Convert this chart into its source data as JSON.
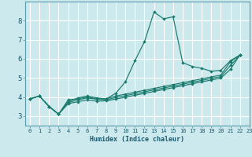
{
  "xlabel": "Humidex (Indice chaleur)",
  "background_color": "#cce9ed",
  "grid_color": "#ffffff",
  "line_color": "#1a7a6e",
  "xlim": [
    -0.5,
    23.0
  ],
  "ylim": [
    2.5,
    9.0
  ],
  "xticks": [
    0,
    1,
    2,
    3,
    4,
    5,
    6,
    7,
    8,
    9,
    10,
    11,
    12,
    13,
    14,
    15,
    16,
    17,
    18,
    19,
    20,
    21,
    22,
    23
  ],
  "yticks": [
    3,
    4,
    5,
    6,
    7,
    8
  ],
  "series": [
    [
      3.9,
      4.05,
      3.5,
      3.1,
      3.85,
      3.9,
      4.0,
      3.9,
      3.9,
      4.2,
      4.8,
      5.9,
      6.9,
      8.45,
      8.1,
      8.2,
      5.8,
      5.6,
      5.5,
      5.35,
      5.4,
      5.9,
      6.2
    ],
    [
      3.9,
      4.05,
      3.5,
      3.1,
      3.75,
      3.95,
      4.05,
      3.95,
      3.9,
      4.05,
      4.15,
      4.25,
      4.35,
      4.45,
      4.55,
      4.65,
      4.75,
      4.85,
      4.95,
      5.05,
      5.15,
      5.85,
      6.2
    ],
    [
      3.9,
      4.05,
      3.5,
      3.1,
      3.7,
      3.85,
      3.95,
      3.88,
      3.85,
      3.97,
      4.07,
      4.17,
      4.27,
      4.37,
      4.47,
      4.57,
      4.67,
      4.77,
      4.87,
      4.97,
      5.07,
      5.65,
      6.2
    ],
    [
      3.9,
      4.05,
      3.5,
      3.1,
      3.65,
      3.75,
      3.85,
      3.78,
      3.8,
      3.89,
      3.99,
      4.09,
      4.19,
      4.29,
      4.39,
      4.49,
      4.59,
      4.69,
      4.79,
      4.89,
      4.99,
      5.45,
      6.2
    ]
  ]
}
